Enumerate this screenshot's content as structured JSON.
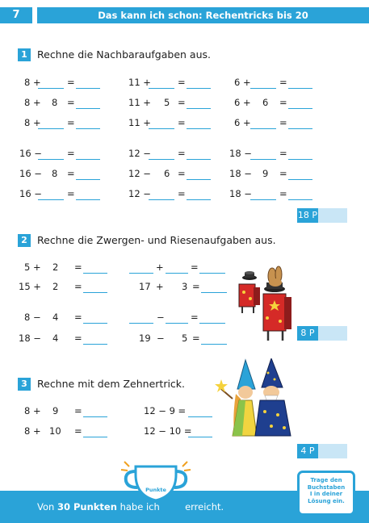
{
  "header": {
    "page_number": "7",
    "title": "Das kann ich schon: Rechentricks bis 20"
  },
  "sections": [
    {
      "number": "1",
      "title": "Rechne die Nachbaraufgaben aus.",
      "points": "18 P"
    },
    {
      "number": "2",
      "title": "Rechne die Zwergen- und Riesenaufgaben aus.",
      "points": "8 P"
    },
    {
      "number": "3",
      "title": "Rechne mit dem Zehnertrick.",
      "points": "4 P"
    }
  ],
  "s1": {
    "r1": [
      "8 +",
      "=",
      "11 +",
      "=",
      "6 +",
      "="
    ],
    "r2": [
      "8 +",
      "8",
      "=",
      "11 +",
      "5",
      "=",
      "6 +",
      "6",
      "="
    ],
    "r3": [
      "8 +",
      "=",
      "11 +",
      "=",
      "6 +",
      "="
    ],
    "r4": [
      "16 −",
      "=",
      "12 −",
      "=",
      "18 −",
      "="
    ],
    "r5": [
      "16 −",
      "8",
      "=",
      "12 −",
      "6",
      "=",
      "18 −",
      "9",
      "="
    ],
    "r6": [
      "16 −",
      "=",
      "12 −",
      "=",
      "18 −",
      "="
    ]
  },
  "s2": {
    "r1": [
      "5 +",
      "2",
      "=",
      "+",
      "="
    ],
    "r2": [
      "15 +",
      "2",
      "=",
      "17",
      "+",
      "3",
      "="
    ],
    "r3": [
      "8 −",
      "4",
      "=",
      "−",
      "="
    ],
    "r4": [
      "18 −",
      "4",
      "=",
      "19",
      "−",
      "5",
      "="
    ]
  },
  "s3": {
    "r1": [
      "8 +",
      "9",
      "=",
      "12 − 9 ="
    ],
    "r2": [
      "8 +",
      "10",
      "=",
      "12 − 10 ="
    ]
  },
  "footer": {
    "trophy_label": "Punkte",
    "text_before": "Von",
    "points_total": "30 Punkten",
    "text_mid": "habe ich",
    "text_after": "erreicht.",
    "note": [
      "Trage den",
      "Buchstaben",
      "I in deiner",
      "Lösung ein."
    ]
  },
  "colors": {
    "accent": "#2aa3d8",
    "points_bg": "#c9e6f6"
  }
}
